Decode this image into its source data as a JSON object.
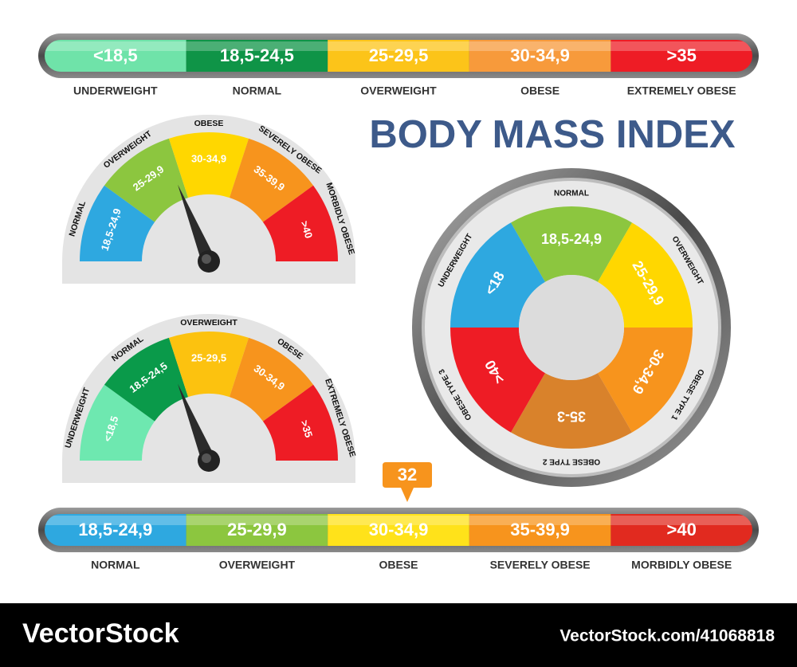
{
  "title": "BODY MASS INDEX",
  "top_bar": {
    "segments": [
      {
        "range": "<18,5",
        "label": "UNDERWEIGHT",
        "color": "#6fe3a9"
      },
      {
        "range": "18,5-24,5",
        "label": "NORMAL",
        "color": "#0f9447"
      },
      {
        "range": "25-29,5",
        "label": "OVERWEIGHT",
        "color": "#fcc419"
      },
      {
        "range": "30-34,9",
        "label": "OBESE",
        "color": "#f79a3b"
      },
      {
        "range": ">35",
        "label": "EXTREMELY OBESE",
        "color": "#ee1c25"
      }
    ]
  },
  "gauge_1": {
    "segments": [
      {
        "range": "18,5-24,9",
        "label": "NORMAL",
        "color": "#2ea8e0"
      },
      {
        "range": "25-29,9",
        "label": "OVERWEIGHT",
        "color": "#8cc63f"
      },
      {
        "range": "30-34,9",
        "label": "OBESE",
        "color": "#ffd700"
      },
      {
        "range": "35-39,9",
        "label": "SEVERELY OBESE",
        "color": "#f7941d"
      },
      {
        "range": ">40",
        "label": "MORBIDLY OBESE",
        "color": "#ee1c25"
      }
    ]
  },
  "gauge_2": {
    "segments": [
      {
        "range": "<18,5",
        "label": "UNDERWEIGHT",
        "color": "#6ee8b0"
      },
      {
        "range": "18,5-24,5",
        "label": "NORMAL",
        "color": "#0a9a4a"
      },
      {
        "range": "25-29,5",
        "label": "OVERWEIGHT",
        "color": "#fcc20f"
      },
      {
        "range": "30-34,9",
        "label": "OBESE",
        "color": "#f7941d"
      },
      {
        "range": ">35",
        "label": "EXTREMELY OBESE",
        "color": "#ee1c25"
      }
    ]
  },
  "dial": {
    "segments": [
      {
        "range": "18,5-24,9",
        "label": "NORMAL",
        "color": "#8cc63f"
      },
      {
        "range": "25-29,9",
        "label": "OVERWEIGHT",
        "color": "#ffd700"
      },
      {
        "range": "30-34,9",
        "label": "OBESE TYPE 1",
        "color": "#f7941d"
      },
      {
        "range": "35-3",
        "label": "OBESE TYPE 2",
        "color": "#d9822b"
      },
      {
        "range": ">40",
        "label": "OBESE TYPE 3",
        "color": "#ee1c25"
      },
      {
        "range": "<18",
        "label": "UNDERWEIGHT",
        "color": "#2ea8e0"
      }
    ]
  },
  "bottom_bar": {
    "marker": 32,
    "segments": [
      {
        "range": "18,5-24,9",
        "label": "NORMAL",
        "color": "#2ea8e0"
      },
      {
        "range": "25-29,9",
        "label": "OVERWEIGHT",
        "color": "#8cc63f"
      },
      {
        "range": "30-34,9",
        "label": "OBESE",
        "color": "#ffe21a"
      },
      {
        "range": "35-39,9",
        "label": "SEVERELY OBESE",
        "color": "#f7941d"
      },
      {
        "range": ">40",
        "label": "MORBIDLY OBESE",
        "color": "#e12a1f"
      }
    ]
  },
  "footer": {
    "brand": "VectorStock",
    "url": "VectorStock.com/41068818"
  }
}
